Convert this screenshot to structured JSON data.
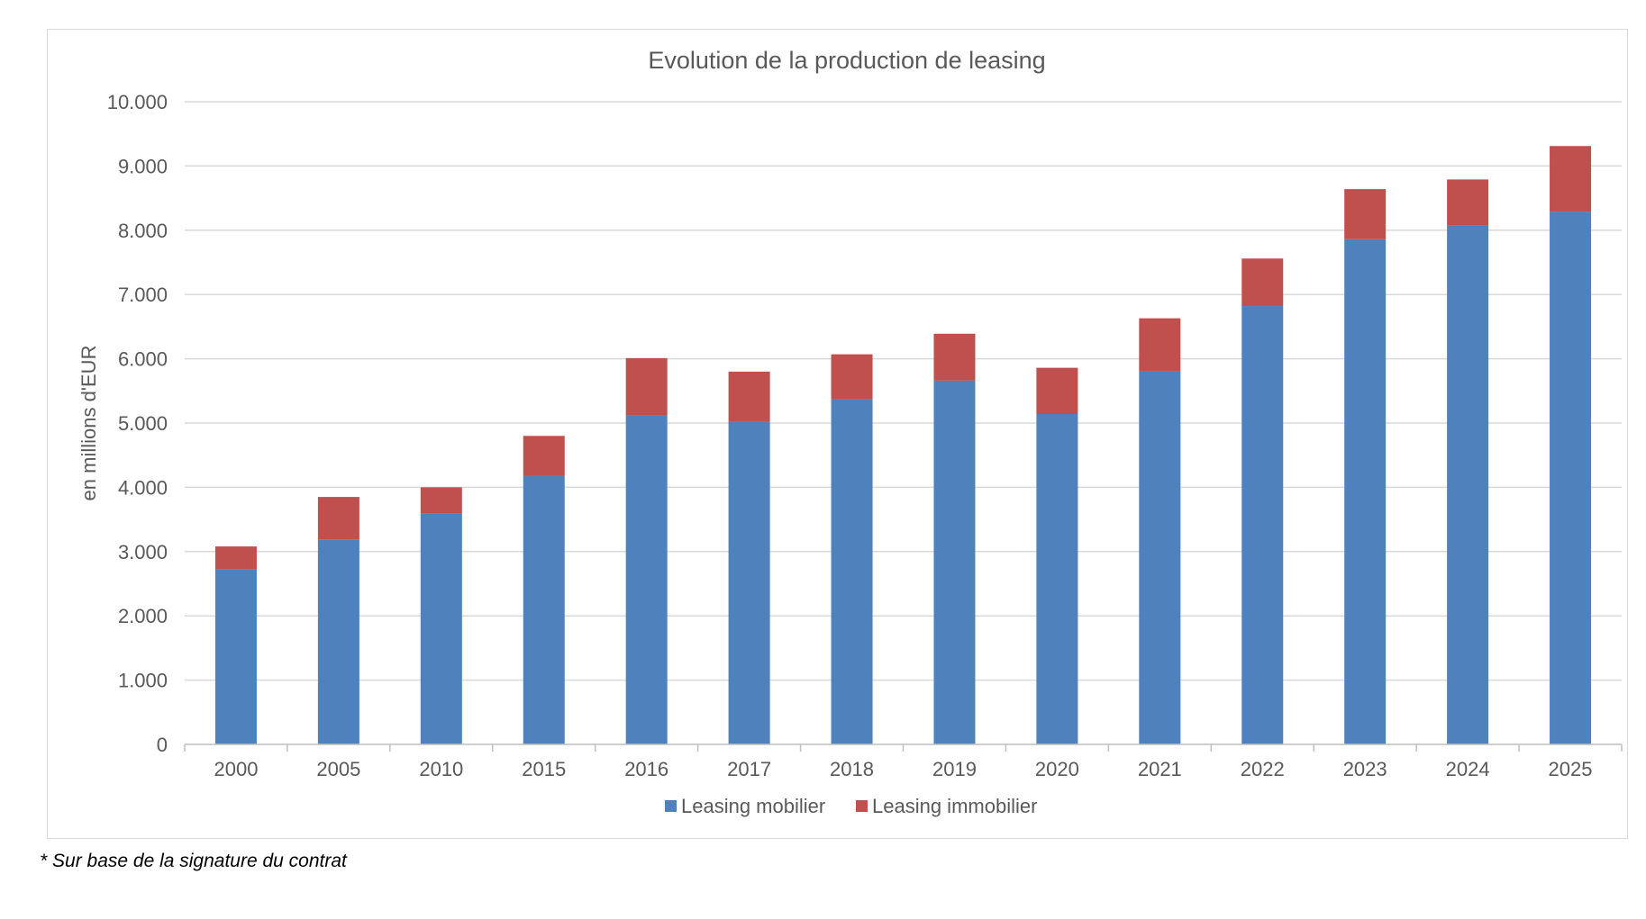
{
  "chart_data": {
    "type": "bar",
    "stacked": true,
    "title": "Evolution de la production de leasing",
    "xlabel": "",
    "ylabel": "en millions d'EUR",
    "ylim": [
      0,
      10000
    ],
    "yticks": [
      0,
      1000,
      2000,
      3000,
      4000,
      5000,
      6000,
      7000,
      8000,
      9000,
      10000
    ],
    "ytick_labels": [
      "0",
      "1.000",
      "2.000",
      "3.000",
      "4.000",
      "5.000",
      "6.000",
      "7.000",
      "8.000",
      "9.000",
      "10.000"
    ],
    "categories": [
      "2000",
      "2005",
      "2010",
      "2015",
      "2016",
      "2017",
      "2018",
      "2019",
      "2020",
      "2021",
      "2022",
      "2023",
      "2024",
      "2025"
    ],
    "series": [
      {
        "name": "Leasing mobilier",
        "color": "#4f81bd",
        "values": [
          2720,
          3190,
          3590,
          4180,
          5120,
          5020,
          5370,
          5660,
          5140,
          5800,
          6820,
          7860,
          8070,
          8290
        ]
      },
      {
        "name": "Leasing immobilier",
        "color": "#c0504d",
        "values": [
          360,
          660,
          410,
          620,
          890,
          780,
          700,
          730,
          720,
          830,
          740,
          780,
          720,
          1020
        ]
      }
    ],
    "grid": true,
    "legend_position": "bottom"
  },
  "footnote": "* Sur base de la signature du contrat"
}
